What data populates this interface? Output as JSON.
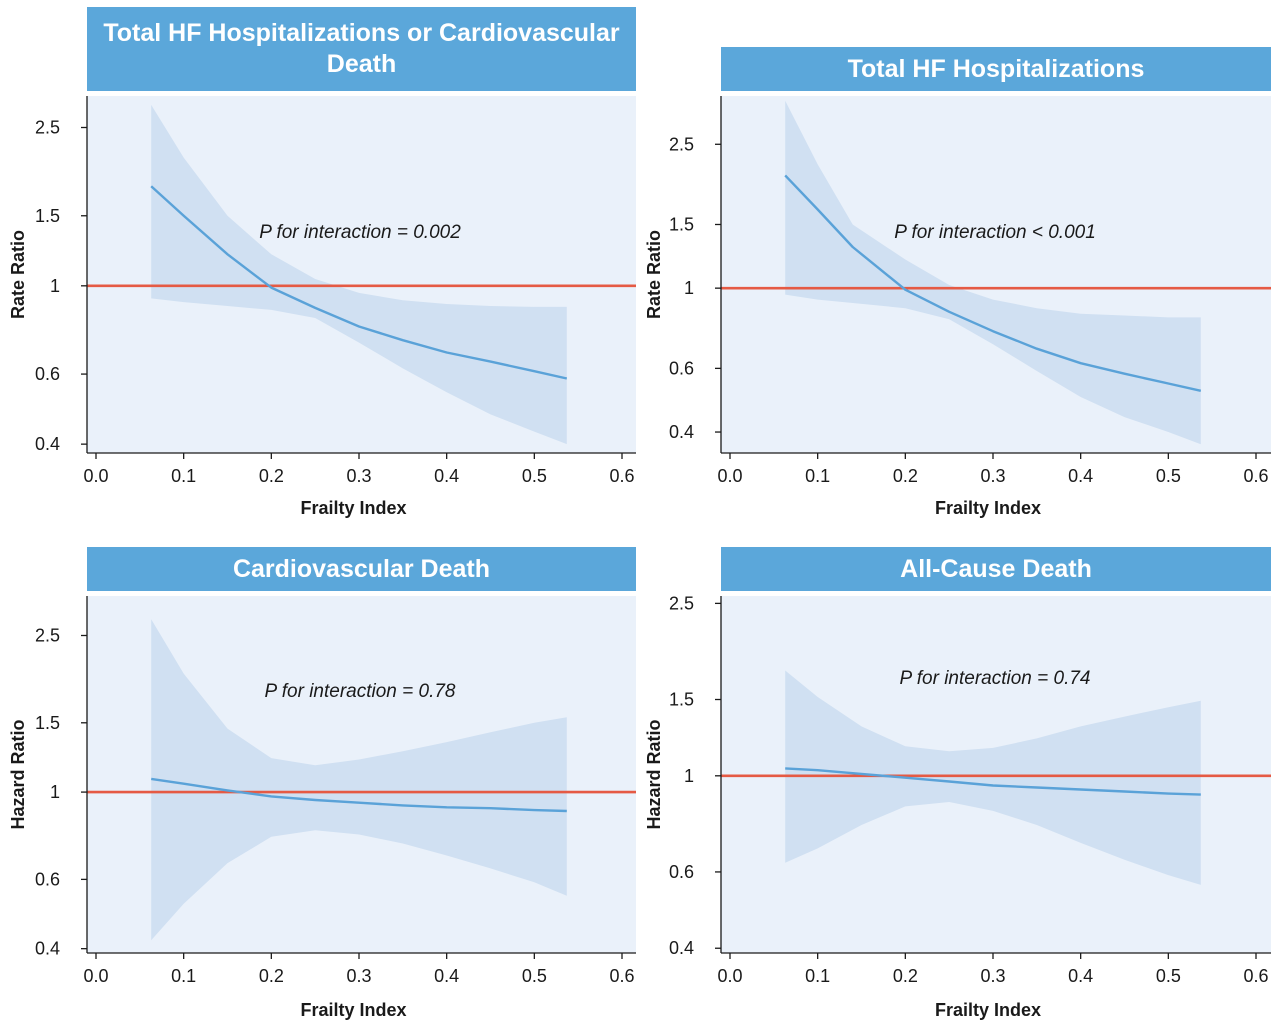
{
  "chart_data": [
    {
      "type": "line",
      "title": "Total HF Hospitalizations or Cardiovascular Death",
      "xlabel": "Frailty Index",
      "ylabel": "Rate Ratio",
      "xlim": [
        0.0,
        0.6
      ],
      "x_ticks": [
        "0.0",
        "0.1",
        "0.2",
        "0.3",
        "0.4",
        "0.5",
        "0.6"
      ],
      "y_scale": "log",
      "ylim": [
        0.38,
        3.0
      ],
      "y_ticks": [
        {
          "value": 0.4,
          "label": "0.4"
        },
        {
          "value": 0.6,
          "label": "0.6"
        },
        {
          "value": 1,
          "label": "1"
        },
        {
          "value": 1.5,
          "label": "1.5"
        },
        {
          "value": 2.5,
          "label": "2.5"
        }
      ],
      "reference_line": 1,
      "annotation": "P for interaction = 0.002",
      "x": [
        0.063,
        0.1,
        0.15,
        0.2,
        0.25,
        0.3,
        0.35,
        0.4,
        0.45,
        0.5,
        0.537
      ],
      "estimate": [
        1.78,
        1.5,
        1.2,
        0.99,
        0.88,
        0.79,
        0.73,
        0.68,
        0.645,
        0.61,
        0.585
      ],
      "ci_lower": [
        0.93,
        0.91,
        0.89,
        0.87,
        0.83,
        0.72,
        0.62,
        0.54,
        0.475,
        0.43,
        0.4
      ],
      "ci_upper": [
        2.85,
        2.1,
        1.5,
        1.2,
        1.04,
        0.96,
        0.92,
        0.9,
        0.89,
        0.885,
        0.885
      ]
    },
    {
      "type": "line",
      "title": "Total HF Hospitalizations",
      "xlabel": "Frailty Index",
      "ylabel": "Rate Ratio",
      "xlim": [
        0.0,
        0.6
      ],
      "x_ticks": [
        "0.0",
        "0.1",
        "0.2",
        "0.3",
        "0.4",
        "0.5",
        "0.6"
      ],
      "y_scale": "log",
      "ylim": [
        0.35,
        3.4
      ],
      "y_ticks": [
        {
          "value": 0.4,
          "label": "0.4"
        },
        {
          "value": 0.6,
          "label": "0.6"
        },
        {
          "value": 1,
          "label": "1"
        },
        {
          "value": 1.5,
          "label": "1.5"
        },
        {
          "value": 2.5,
          "label": "2.5"
        }
      ],
      "reference_line": 1,
      "annotation": "P for interaction < 0.001",
      "x": [
        0.063,
        0.1,
        0.14,
        0.2,
        0.25,
        0.3,
        0.35,
        0.4,
        0.45,
        0.5,
        0.537
      ],
      "estimate": [
        2.05,
        1.65,
        1.3,
        0.99,
        0.86,
        0.76,
        0.68,
        0.62,
        0.58,
        0.545,
        0.52
      ],
      "ci_lower": [
        0.96,
        0.93,
        0.91,
        0.88,
        0.82,
        0.7,
        0.59,
        0.5,
        0.44,
        0.4,
        0.37
      ],
      "ci_upper": [
        3.3,
        2.2,
        1.5,
        1.2,
        1.02,
        0.93,
        0.88,
        0.85,
        0.84,
        0.83,
        0.83
      ]
    },
    {
      "type": "line",
      "title": "Cardiovascular Death",
      "xlabel": "Frailty Index",
      "ylabel": "Hazard Ratio",
      "xlim": [
        0.0,
        0.6
      ],
      "x_ticks": [
        "0.0",
        "0.1",
        "0.2",
        "0.3",
        "0.4",
        "0.5",
        "0.6"
      ],
      "y_scale": "log",
      "ylim": [
        0.39,
        3.15
      ],
      "y_ticks": [
        {
          "value": 0.4,
          "label": "0.4"
        },
        {
          "value": 0.6,
          "label": "0.6"
        },
        {
          "value": 1,
          "label": "1"
        },
        {
          "value": 1.5,
          "label": "1.5"
        },
        {
          "value": 2.5,
          "label": "2.5"
        }
      ],
      "reference_line": 1,
      "annotation": "P for interaction = 0.78",
      "x": [
        0.063,
        0.1,
        0.15,
        0.2,
        0.25,
        0.3,
        0.35,
        0.4,
        0.45,
        0.5,
        0.537
      ],
      "estimate": [
        1.08,
        1.05,
        1.01,
        0.975,
        0.955,
        0.94,
        0.925,
        0.915,
        0.91,
        0.9,
        0.895
      ],
      "ci_lower": [
        0.42,
        0.52,
        0.66,
        0.77,
        0.8,
        0.78,
        0.74,
        0.69,
        0.64,
        0.59,
        0.545
      ],
      "ci_upper": [
        2.75,
        2.0,
        1.45,
        1.22,
        1.17,
        1.21,
        1.27,
        1.34,
        1.42,
        1.5,
        1.55
      ]
    },
    {
      "type": "line",
      "title": "All-Cause Death",
      "xlabel": "Frailty Index",
      "ylabel": "Hazard Ratio",
      "xlim": [
        0.0,
        0.6
      ],
      "x_ticks": [
        "0.0",
        "0.1",
        "0.2",
        "0.3",
        "0.4",
        "0.5",
        "0.6"
      ],
      "y_scale": "log",
      "ylim": [
        0.39,
        2.6
      ],
      "y_ticks": [
        {
          "value": 0.4,
          "label": "0.4"
        },
        {
          "value": 0.6,
          "label": "0.6"
        },
        {
          "value": 1,
          "label": "1"
        },
        {
          "value": 1.5,
          "label": "1.5"
        },
        {
          "value": 2.5,
          "label": "2.5"
        }
      ],
      "reference_line": 1,
      "annotation": "P for interaction = 0.74",
      "x": [
        0.063,
        0.1,
        0.15,
        0.2,
        0.25,
        0.3,
        0.35,
        0.4,
        0.45,
        0.5,
        0.537
      ],
      "estimate": [
        1.04,
        1.03,
        1.01,
        0.99,
        0.97,
        0.95,
        0.94,
        0.93,
        0.92,
        0.91,
        0.905
      ],
      "ci_lower": [
        0.63,
        0.68,
        0.77,
        0.85,
        0.87,
        0.83,
        0.77,
        0.7,
        0.64,
        0.59,
        0.56
      ],
      "ci_upper": [
        1.75,
        1.52,
        1.3,
        1.17,
        1.14,
        1.16,
        1.22,
        1.3,
        1.37,
        1.44,
        1.49
      ]
    }
  ],
  "colors": {
    "header_bg": "#5ba7da",
    "plot_bg": "#eaf1fa",
    "ci_band": "#d0e0f2",
    "line": "#5aa2d8",
    "reference_line": "#e55a44"
  }
}
